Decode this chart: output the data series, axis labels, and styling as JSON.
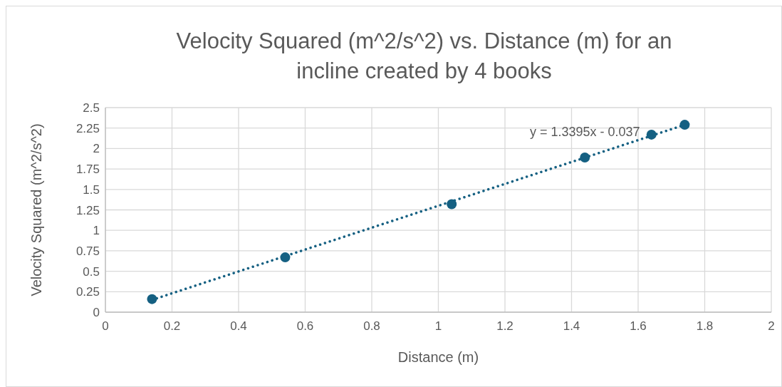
{
  "chart_data": {
    "type": "scatter",
    "title": "Velocity Squared (m^2/s^2) vs. Distance (m) for an incline created by 4 books",
    "xlabel": "Distance (m)",
    "ylabel": "Velocity Squared (m^2/s^2)",
    "series": [
      {
        "color": "#156082",
        "x": [
          0.14,
          0.54,
          1.04,
          1.44,
          1.64,
          1.74
        ],
        "values": [
          0.16,
          0.67,
          1.32,
          1.89,
          2.17,
          2.29
        ],
        "marker": "circle"
      },
      {
        "type": "line",
        "color": "#156082",
        "x": [
          0.14,
          1.74
        ],
        "values": [
          0.15,
          2.29
        ],
        "line_style": "dotted",
        "marker": "none"
      }
    ],
    "annotations": [
      "y = 1.3395x - 0.037"
    ],
    "xlim": [
      0,
      2
    ],
    "xticks": [
      0,
      0.2,
      0.4,
      0.6,
      0.8,
      1,
      1.2,
      1.4,
      1.6,
      1.8,
      2
    ],
    "ylim": [
      0,
      2.5
    ],
    "yticks": [
      0,
      0.25,
      0.5,
      0.75,
      1,
      1.25,
      1.5,
      1.75,
      2,
      2.25,
      2.5
    ],
    "grid": true
  }
}
